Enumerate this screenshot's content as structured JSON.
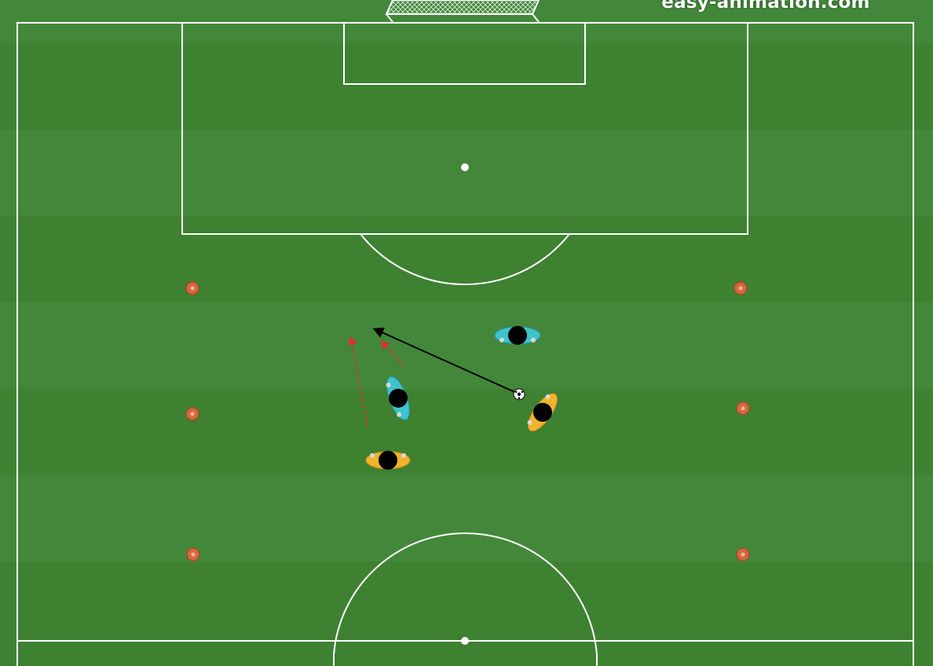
{
  "watermark": "easy-animation.com",
  "colors": {
    "grass_light": "#43883a",
    "grass_dark": "#3d7f30",
    "lines": "#ffffff",
    "team_cyan": "#3ec3cc",
    "team_yellow": "#f2b32c",
    "player_head": "#000000",
    "cone": "#d4693f",
    "run_arrow": "#e0302a",
    "pass_arrow": "#000000"
  },
  "players": [
    {
      "team": "cyan",
      "label": "cyan-player-top-right"
    },
    {
      "team": "cyan",
      "label": "cyan-player-middle"
    },
    {
      "team": "yellow",
      "label": "yellow-player-right"
    },
    {
      "team": "yellow",
      "label": "yellow-player-bottom"
    }
  ],
  "cones_count": 6,
  "icons": {
    "ball": "soccer-ball-icon",
    "cone": "cone-marker-icon",
    "goal": "goal-net-icon"
  }
}
